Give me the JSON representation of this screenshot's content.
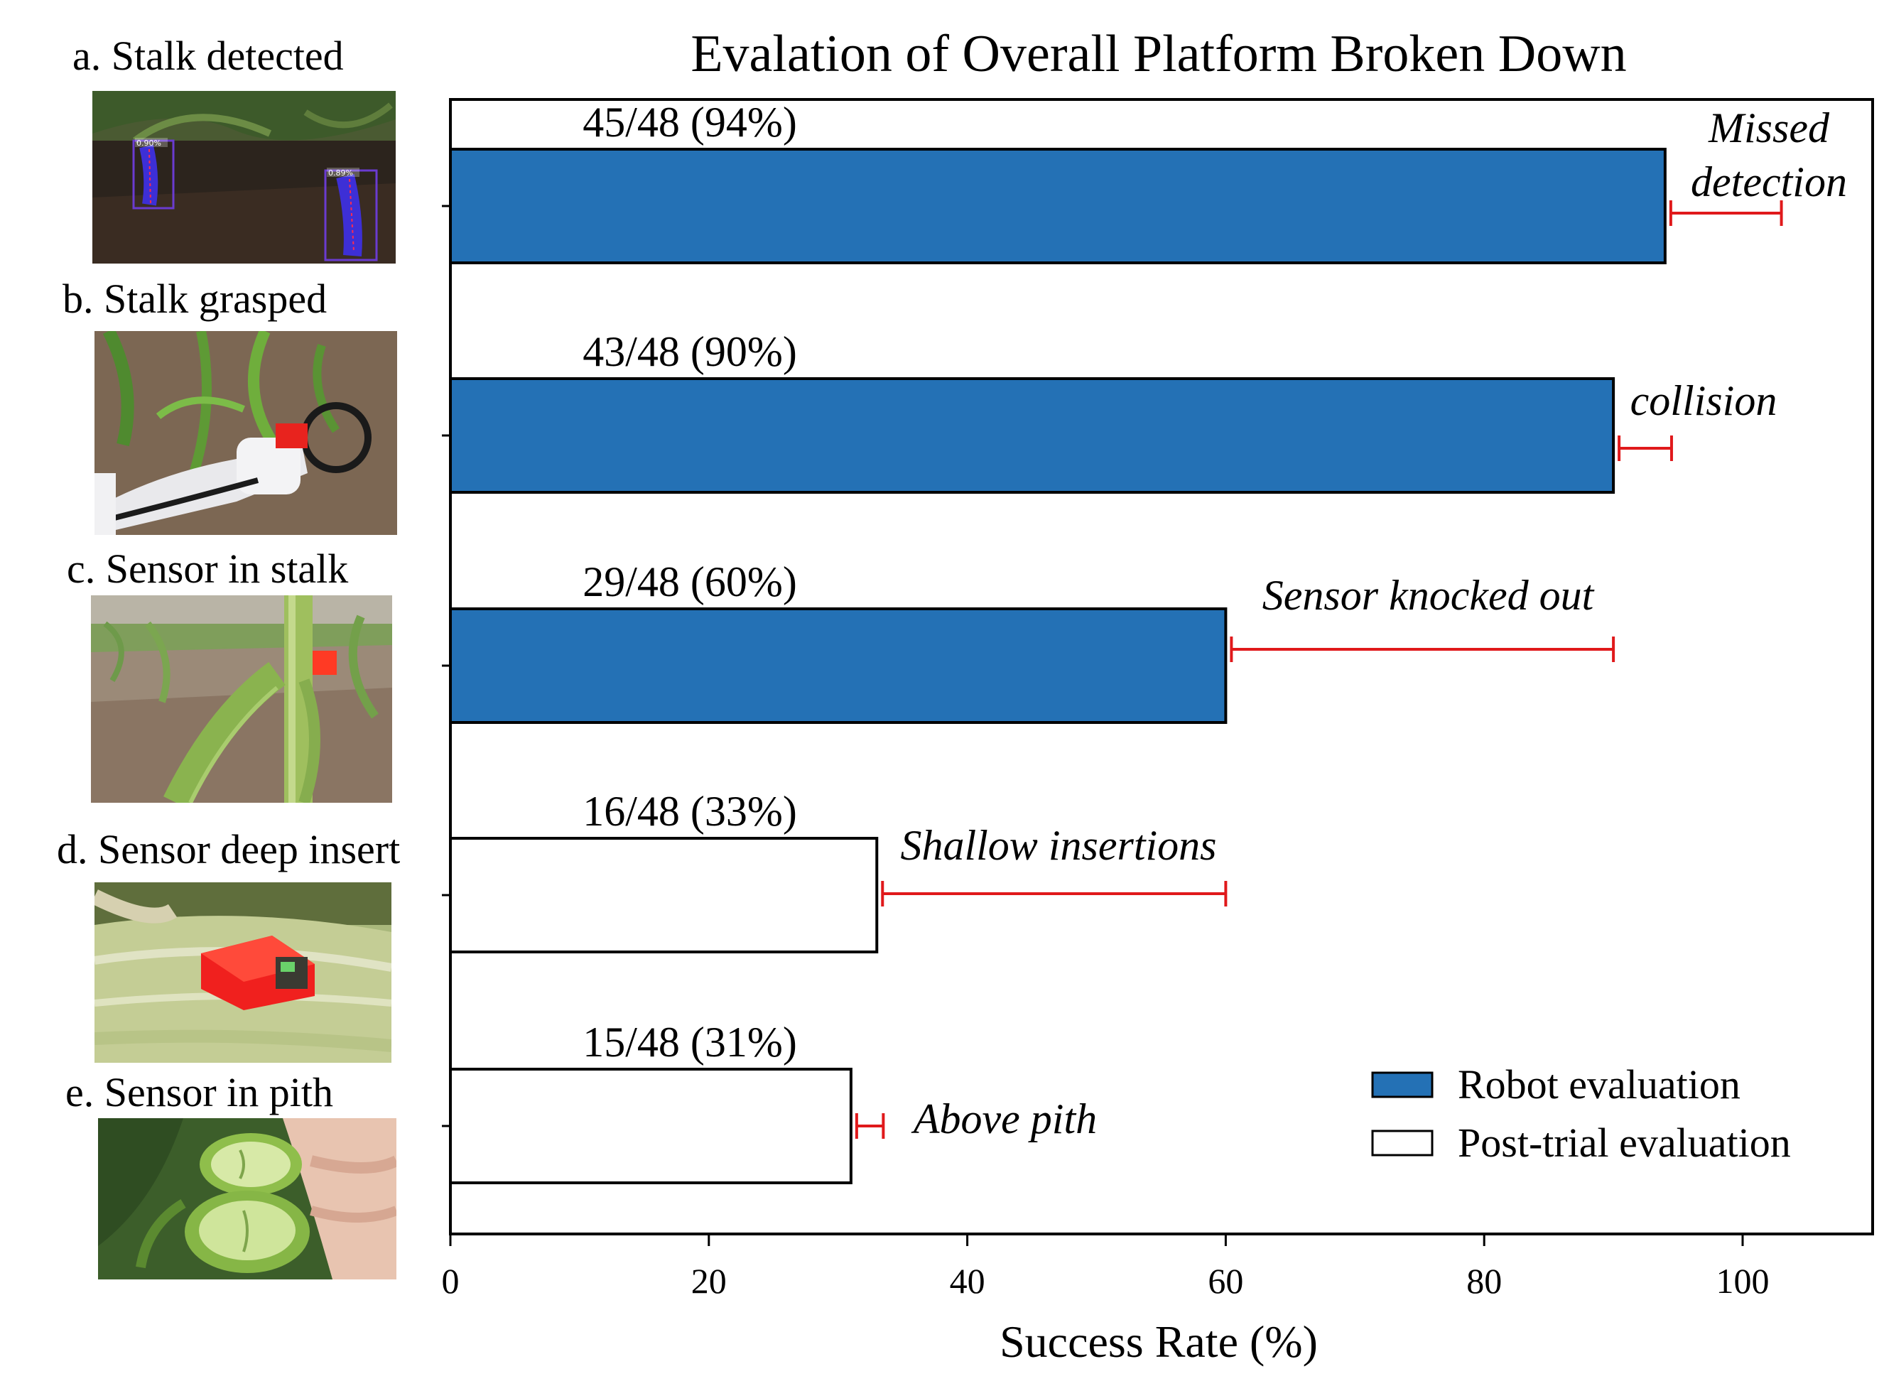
{
  "panels": [
    {
      "label": "a. Stalk detected",
      "detections": [
        "0.90%",
        "0.89%"
      ]
    },
    {
      "label": "b. Stalk grasped"
    },
    {
      "label": "c. Sensor in stalk"
    },
    {
      "label": "d. Sensor deep insert"
    },
    {
      "label": "e. Sensor in pith"
    }
  ],
  "chart_data": {
    "type": "bar",
    "orientation": "horizontal",
    "title": "Evalation of Overall Platform Broken Down",
    "xlabel": "Success Rate (%)",
    "ylabel": "",
    "xlim": [
      0,
      110
    ],
    "xticks": [
      0,
      20,
      40,
      60,
      80,
      100
    ],
    "grid": false,
    "legend_position": "bottom-right",
    "series": [
      {
        "name": "Robot evaluation",
        "color": "#2471b5"
      },
      {
        "name": "Post-trial evaluation",
        "color": "#ffffff"
      }
    ],
    "bars": [
      {
        "value": 94,
        "label": "45/48 (94%)",
        "series": 0,
        "loss_start": 94,
        "loss_end": 103,
        "annotation": [
          "Missed",
          "detection"
        ]
      },
      {
        "value": 90,
        "label": "43/48 (90%)",
        "series": 0,
        "loss_start": 90,
        "loss_end": 94.5,
        "annotation": [
          "collision"
        ]
      },
      {
        "value": 60,
        "label": "29/48 (60%)",
        "series": 0,
        "loss_start": 60,
        "loss_end": 90,
        "annotation": [
          "Sensor knocked out"
        ]
      },
      {
        "value": 33,
        "label": "16/48 (33%)",
        "series": 1,
        "loss_start": 33,
        "loss_end": 60,
        "annotation": [
          "Shallow insertions"
        ]
      },
      {
        "value": 31,
        "label": "15/48 (31%)",
        "series": 1,
        "loss_start": 31,
        "loss_end": 33.5,
        "annotation": [
          "Above pith"
        ]
      }
    ],
    "error_color": "#e0191b"
  }
}
